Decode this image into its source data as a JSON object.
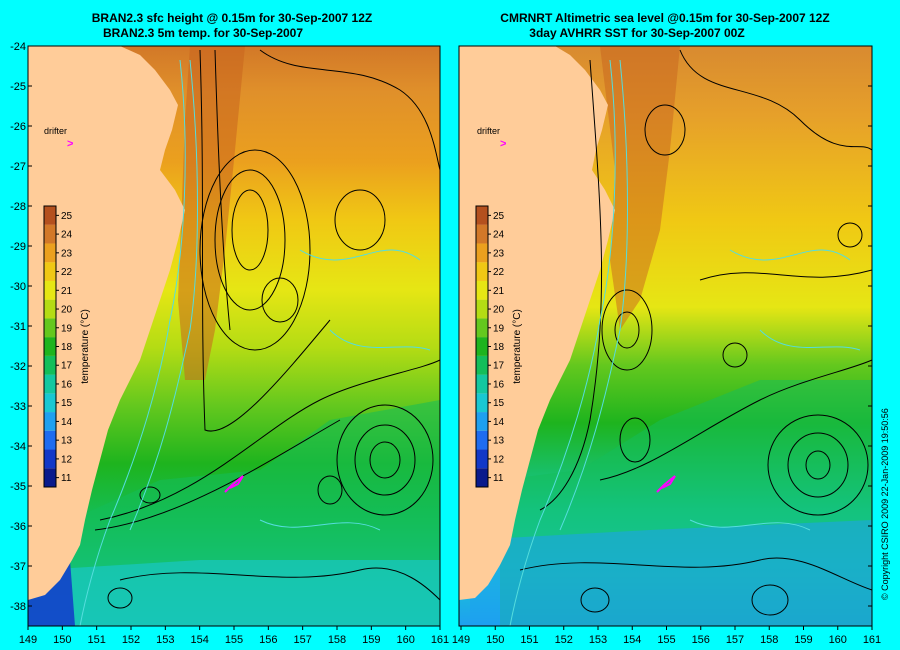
{
  "left_panel": {
    "title_line1": "BRAN2.3 sfc height @ 0.15m for 30-Sep-2007 12Z",
    "title_line2": "BRAN2.3 5m temp. for 30-Sep-2007",
    "drifter_label": "drifter",
    "drifter_marker": ">"
  },
  "right_panel": {
    "title_line1": "CMRNRT Altimetric sea level  @0.15m  for 30-Sep-2007 12Z",
    "title_line2": "3day AVHRR SST for 30-Sep-2007 00Z",
    "drifter_label": "drifter",
    "drifter_marker": ">"
  },
  "colorbar": {
    "label": "temperature (°C)",
    "ticks": [
      "11",
      "12",
      "13",
      "14",
      "15",
      "16",
      "17",
      "18",
      "19",
      "20",
      "21",
      "22",
      "23",
      "24",
      "25"
    ],
    "colors": [
      "#0a1a8c",
      "#1238c8",
      "#1e6cf0",
      "#1ea0f0",
      "#19c8d2",
      "#14c8a0",
      "#14be5a",
      "#1eb41e",
      "#64c81e",
      "#b4dc14",
      "#e6e614",
      "#f0c814",
      "#eba01e",
      "#d27828",
      "#b4501e"
    ]
  },
  "axes": {
    "lat_labels": [
      "-24",
      "-25",
      "-26",
      "-27",
      "-28",
      "-29",
      "-30",
      "-31",
      "-32",
      "-33",
      "-34",
      "-35",
      "-36",
      "-37",
      "-38"
    ],
    "left_lon_labels": [
      "149",
      "150",
      "151",
      "152",
      "153",
      "154",
      "155",
      "156",
      "157",
      "158",
      "159",
      "160",
      "161"
    ],
    "right_lon_labels": [
      "149",
      "150",
      "151",
      "152",
      "153",
      "154",
      "155",
      "156",
      "157",
      "158",
      "159",
      "160",
      "161"
    ]
  },
  "colors": {
    "background": "#00FFFF",
    "land": "#FFCC99",
    "drifter": "#FF00FF",
    "contour": "#000000",
    "bathymetry": "#55DDDD"
  },
  "copyright": "© Copyright CSIRO 2009   22-Jan-2009 19:50:56"
}
